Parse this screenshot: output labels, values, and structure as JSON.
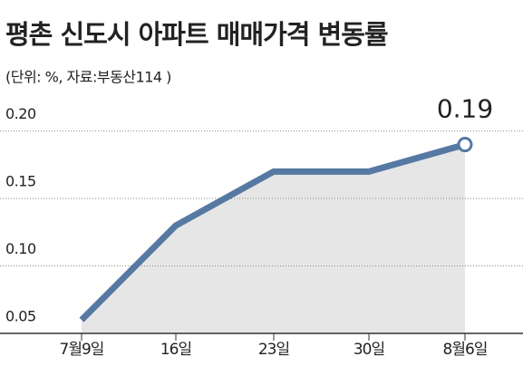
{
  "chart_data": {
    "type": "line",
    "title": "평촌 신도시 아파트 매매가격 변동률",
    "subtitle": "(단위: %, 자료:부동산114 )",
    "categories": [
      "7월9일",
      "16일",
      "23일",
      "30일",
      "8월6일"
    ],
    "series": [
      {
        "color": "#5679a3",
        "values": [
          0.06,
          0.13,
          0.17,
          0.17,
          0.19
        ],
        "value_labels": [
          null,
          null,
          null,
          null,
          "0.19"
        ]
      }
    ],
    "ylim": [
      0.05,
      0.23
    ],
    "yticks": [
      0.05,
      {
        "value": 0.1,
        "label": "0.10"
      },
      0.15,
      {
        "value": 0.2,
        "label": "0.20"
      }
    ],
    "grid": true,
    "area_color": "#e6e6e6"
  }
}
